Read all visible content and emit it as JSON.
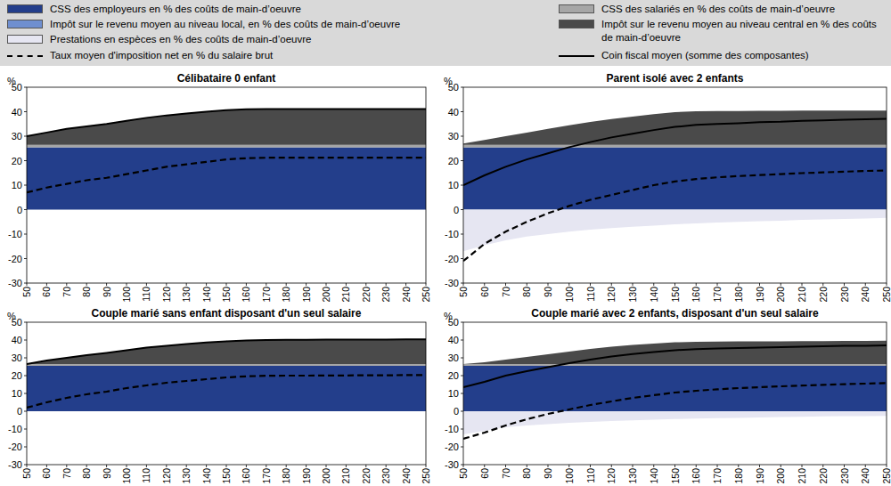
{
  "chart_data": [
    {
      "type": "area",
      "title": "Célibataire 0 enfant",
      "y_label": "%",
      "stacked": true,
      "x": [
        50,
        60,
        70,
        80,
        90,
        100,
        110,
        120,
        130,
        140,
        150,
        160,
        170,
        180,
        190,
        200,
        210,
        220,
        230,
        240,
        250
      ],
      "xlim": [
        50,
        250
      ],
      "xticks": [
        50,
        60,
        70,
        80,
        90,
        100,
        110,
        120,
        130,
        140,
        150,
        160,
        170,
        180,
        190,
        200,
        210,
        220,
        230,
        240,
        250
      ],
      "ylim": [
        -30,
        50
      ],
      "yticks": [
        -30,
        -20,
        -10,
        0,
        10,
        20,
        30,
        40,
        50
      ],
      "series": [
        {
          "name": "CSS des employeurs en % des coûts de main-d’oeuvre",
          "type": "area",
          "color": "#233e8b",
          "values": [
            25.5,
            25.5,
            25.5,
            25.5,
            25.5,
            25.5,
            25.5,
            25.5,
            25.5,
            25.5,
            25.5,
            25.5,
            25.5,
            25.5,
            25.5,
            25.5,
            25.5,
            25.5,
            25.5,
            25.5,
            25.5
          ]
        },
        {
          "name": "CSS des salariés en % des coûts de main-d’oeuvre",
          "type": "area",
          "color": "#a6a6a6",
          "values": [
            1,
            1,
            1,
            1,
            1,
            1,
            1,
            1,
            1,
            1,
            1,
            1,
            1,
            1,
            1,
            1,
            1,
            1,
            1,
            1,
            1
          ]
        },
        {
          "name": "Impôt sur le revenu moyen au niveau local, en % des coûts de main-d’oeuvre",
          "type": "area",
          "color": "#6f8fd0",
          "values": [
            0,
            0,
            0,
            0,
            0,
            0,
            0,
            0,
            0,
            0,
            0,
            0,
            0,
            0,
            0,
            0,
            0,
            0,
            0,
            0,
            0
          ]
        },
        {
          "name": "Impôt sur le revenu moyen au niveau central en % des coûts de main-d’oeuvre",
          "type": "area",
          "color": "#4a4a4a",
          "values": [
            3.5,
            5,
            6.5,
            7.5,
            8.5,
            9.8,
            11,
            12,
            12.8,
            13.5,
            14.1,
            14.5,
            14.6,
            14.6,
            14.6,
            14.6,
            14.6,
            14.6,
            14.6,
            14.6,
            14.6
          ]
        },
        {
          "name": "Prestations en espèces en % des coûts de main-d’oeuvre",
          "type": "area",
          "color": "#e6e6f2",
          "values": [
            0,
            0,
            0,
            0,
            0,
            0,
            0,
            0,
            0,
            0,
            0,
            0,
            0,
            0,
            0,
            0,
            0,
            0,
            0,
            0,
            0
          ]
        },
        {
          "name": "Taux moyen d'imposition net en % du salaire brut",
          "type": "line",
          "line_style": "dashed",
          "color": "#000000",
          "values": [
            7,
            9,
            10.5,
            12,
            13,
            14.5,
            16,
            17.5,
            18.5,
            19.5,
            20.5,
            21,
            21.2,
            21.2,
            21.2,
            21.2,
            21.2,
            21.2,
            21.2,
            21.2,
            21.2
          ]
        },
        {
          "name": "Coin fiscal moyen (somme des composantes)",
          "type": "line",
          "line_style": "solid",
          "color": "#000000",
          "values": [
            30,
            31.5,
            33,
            34,
            35,
            36.3,
            37.5,
            38.5,
            39.3,
            40,
            40.6,
            41,
            41.1,
            41.1,
            41.1,
            41.1,
            41.1,
            41.1,
            41.1,
            41.1,
            41.1
          ]
        }
      ]
    },
    {
      "type": "area",
      "title": "Parent isolé avec 2 enfants",
      "y_label": "%",
      "stacked": true,
      "x": [
        50,
        60,
        70,
        80,
        90,
        100,
        110,
        120,
        130,
        140,
        150,
        160,
        170,
        180,
        190,
        200,
        210,
        220,
        230,
        240,
        250
      ],
      "xlim": [
        50,
        250
      ],
      "xticks": [
        50,
        60,
        70,
        80,
        90,
        100,
        110,
        120,
        130,
        140,
        150,
        160,
        170,
        180,
        190,
        200,
        210,
        220,
        230,
        240,
        250
      ],
      "ylim": [
        -30,
        50
      ],
      "yticks": [
        -30,
        -20,
        -10,
        0,
        10,
        20,
        30,
        40,
        50
      ],
      "series": [
        {
          "name": "CSS des employeurs en % des coûts de main-d’oeuvre",
          "type": "area",
          "color": "#233e8b",
          "values": [
            25.5,
            25.5,
            25.5,
            25.5,
            25.5,
            25.5,
            25.5,
            25.5,
            25.5,
            25.5,
            25.5,
            25.5,
            25.5,
            25.5,
            25.5,
            25.5,
            25.5,
            25.5,
            25.5,
            25.5,
            25.5
          ]
        },
        {
          "name": "CSS des salariés en % des coûts de main-d’oeuvre",
          "type": "area",
          "color": "#a6a6a6",
          "values": [
            1,
            1,
            1,
            1,
            1,
            1,
            1,
            1,
            1,
            1,
            1,
            1,
            1,
            1,
            1,
            1,
            1,
            1,
            1,
            1,
            1
          ]
        },
        {
          "name": "Impôt sur le revenu moyen au niveau local, en % des coûts de main-d’oeuvre",
          "type": "area",
          "color": "#6f8fd0",
          "values": [
            0,
            0,
            0,
            0,
            0,
            0,
            0,
            0,
            0,
            0,
            0,
            0,
            0,
            0,
            0,
            0,
            0,
            0,
            0,
            0,
            0
          ]
        },
        {
          "name": "Impôt sur le revenu moyen au niveau central en % des coûts de main-d’oeuvre",
          "type": "area",
          "color": "#4a4a4a",
          "values": [
            0.5,
            2,
            3.5,
            5,
            6.5,
            8,
            9.3,
            10.5,
            11.5,
            12.5,
            13.3,
            13.7,
            13.8,
            13.8,
            13.9,
            13.9,
            14,
            14,
            14,
            14,
            14
          ]
        },
        {
          "name": "Prestations en espèces en % des coûts de main-d’oeuvre",
          "type": "area",
          "color": "#e6e6f2",
          "values": [
            -17,
            -14.5,
            -12.5,
            -11,
            -10,
            -9,
            -8.2,
            -7.5,
            -7,
            -6.5,
            -6,
            -5.6,
            -5.3,
            -5,
            -4.7,
            -4.5,
            -4.2,
            -4,
            -3.8,
            -3.6,
            -3.4
          ]
        },
        {
          "name": "Taux moyen d'imposition net en % du salaire brut",
          "type": "line",
          "line_style": "dashed",
          "color": "#000000",
          "values": [
            -21,
            -14,
            -9,
            -5,
            -1.5,
            1.5,
            4,
            6,
            8,
            10,
            11.5,
            12.5,
            13.2,
            13.7,
            14.1,
            14.5,
            14.9,
            15.2,
            15.5,
            15.8,
            16
          ]
        },
        {
          "name": "Coin fiscal moyen (somme des composantes)",
          "type": "line",
          "line_style": "solid",
          "color": "#000000",
          "values": [
            10,
            14,
            17.5,
            20.5,
            23,
            25.5,
            27.6,
            29.5,
            31,
            32.5,
            33.8,
            34.6,
            35,
            35.3,
            35.7,
            35.9,
            36.3,
            36.5,
            36.7,
            36.9,
            37.1
          ]
        }
      ]
    },
    {
      "type": "area",
      "title": "Couple marié sans enfant disposant d'un seul salaire",
      "y_label": "%",
      "stacked": true,
      "x": [
        50,
        60,
        70,
        80,
        90,
        100,
        110,
        120,
        130,
        140,
        150,
        160,
        170,
        180,
        190,
        200,
        210,
        220,
        230,
        240,
        250
      ],
      "xlim": [
        50,
        250
      ],
      "xticks": [
        50,
        60,
        70,
        80,
        90,
        100,
        110,
        120,
        130,
        140,
        150,
        160,
        170,
        180,
        190,
        200,
        210,
        220,
        230,
        240,
        250
      ],
      "ylim": [
        -30,
        50
      ],
      "yticks": [
        -30,
        -20,
        -10,
        0,
        10,
        20,
        30,
        40,
        50
      ],
      "series": [
        {
          "name": "CSS des employeurs en % des coûts de main-d’oeuvre",
          "type": "area",
          "color": "#233e8b",
          "values": [
            25.5,
            25.5,
            25.5,
            25.5,
            25.5,
            25.5,
            25.5,
            25.5,
            25.5,
            25.5,
            25.5,
            25.5,
            25.5,
            25.5,
            25.5,
            25.5,
            25.5,
            25.5,
            25.5,
            25.5,
            25.5
          ]
        },
        {
          "name": "CSS des salariés en % des coûts de main-d’oeuvre",
          "type": "area",
          "color": "#a6a6a6",
          "values": [
            1,
            1,
            1,
            1,
            1,
            1,
            1,
            1,
            1,
            1,
            1,
            1,
            1,
            1,
            1,
            1,
            1,
            1,
            1,
            1,
            1
          ]
        },
        {
          "name": "Impôt sur le revenu moyen au niveau local, en % des coûts de main-d’oeuvre",
          "type": "area",
          "color": "#6f8fd0",
          "values": [
            0,
            0,
            0,
            0,
            0,
            0,
            0,
            0,
            0,
            0,
            0,
            0,
            0,
            0,
            0,
            0,
            0,
            0,
            0,
            0,
            0
          ]
        },
        {
          "name": "Impôt sur le revenu moyen au niveau central en % des coûts de main-d’oeuvre",
          "type": "area",
          "color": "#4a4a4a",
          "values": [
            0,
            2,
            3.5,
            5,
            6.3,
            7.8,
            9.2,
            10.3,
            11.3,
            12.1,
            12.8,
            13.3,
            13.5,
            13.6,
            13.6,
            13.7,
            13.7,
            13.8,
            13.8,
            13.9,
            13.9
          ]
        },
        {
          "name": "Prestations en espèces en % des coûts de main-d’oeuvre",
          "type": "area",
          "color": "#e6e6f2",
          "values": [
            0,
            0,
            0,
            0,
            0,
            0,
            0,
            0,
            0,
            0,
            0,
            0,
            0,
            0,
            0,
            0,
            0,
            0,
            0,
            0,
            0
          ]
        },
        {
          "name": "Taux moyen d'imposition net en % du salaire brut",
          "type": "line",
          "line_style": "dashed",
          "color": "#000000",
          "values": [
            2,
            5,
            7.5,
            9.5,
            11,
            13,
            14.5,
            16,
            17,
            18,
            19,
            19.6,
            19.9,
            20,
            20,
            20.1,
            20.1,
            20.2,
            20.2,
            20.3,
            20.3
          ]
        },
        {
          "name": "Coin fiscal moyen (somme des composantes)",
          "type": "line",
          "line_style": "solid",
          "color": "#000000",
          "values": [
            26.5,
            28.5,
            30,
            31.5,
            32.8,
            34.3,
            35.7,
            36.8,
            37.8,
            38.6,
            39.3,
            39.8,
            40,
            40.1,
            40.1,
            40.2,
            40.2,
            40.3,
            40.3,
            40.4,
            40.4
          ]
        }
      ]
    },
    {
      "type": "area",
      "title": "Couple marié avec 2 enfants, disposant d'un seul salaire",
      "y_label": "%",
      "stacked": true,
      "x": [
        50,
        60,
        70,
        80,
        90,
        100,
        110,
        120,
        130,
        140,
        150,
        160,
        170,
        180,
        190,
        200,
        210,
        220,
        230,
        240,
        250
      ],
      "xlim": [
        50,
        250
      ],
      "xticks": [
        50,
        60,
        70,
        80,
        90,
        100,
        110,
        120,
        130,
        140,
        150,
        160,
        170,
        180,
        190,
        200,
        210,
        220,
        230,
        240,
        250
      ],
      "ylim": [
        -30,
        50
      ],
      "yticks": [
        -30,
        -20,
        -10,
        0,
        10,
        20,
        30,
        40,
        50
      ],
      "series": [
        {
          "name": "CSS des employeurs en % des coûts de main-d’oeuvre",
          "type": "area",
          "color": "#233e8b",
          "values": [
            25.5,
            25.5,
            25.5,
            25.5,
            25.5,
            25.5,
            25.5,
            25.5,
            25.5,
            25.5,
            25.5,
            25.5,
            25.5,
            25.5,
            25.5,
            25.5,
            25.5,
            25.5,
            25.5,
            25.5,
            25.5
          ]
        },
        {
          "name": "CSS des salariés en % des coûts de main-d’oeuvre",
          "type": "area",
          "color": "#a6a6a6",
          "values": [
            1,
            1,
            1,
            1,
            1,
            1,
            1,
            1,
            1,
            1,
            1,
            1,
            1,
            1,
            1,
            1,
            1,
            1,
            1,
            1,
            1
          ]
        },
        {
          "name": "Impôt sur le revenu moyen au niveau local, en % des coûts de main-d’oeuvre",
          "type": "area",
          "color": "#6f8fd0",
          "values": [
            0,
            0,
            0,
            0,
            0,
            0,
            0,
            0,
            0,
            0,
            0,
            0,
            0,
            0,
            0,
            0,
            0,
            0,
            0,
            0,
            0
          ]
        },
        {
          "name": "Impôt sur le revenu moyen au niveau central en % des coûts de main-d’oeuvre",
          "type": "area",
          "color": "#4a4a4a",
          "values": [
            0,
            1,
            2.5,
            4,
            5.5,
            7,
            8.5,
            9.7,
            10.7,
            11.5,
            12.2,
            12.5,
            12.6,
            12.7,
            12.8,
            12.8,
            12.9,
            12.9,
            13,
            13,
            13.1
          ]
        },
        {
          "name": "Prestations en espèces en % des coûts de main-d’oeuvre",
          "type": "area",
          "color": "#e6e6f2",
          "values": [
            -13,
            -11,
            -9,
            -8,
            -7.2,
            -6.5,
            -6,
            -5.5,
            -5.1,
            -4.7,
            -4.4,
            -4.1,
            -3.9,
            -3.7,
            -3.5,
            -3.3,
            -3.1,
            -2.9,
            -2.8,
            -2.7,
            -2.6
          ]
        },
        {
          "name": "Taux moyen d'imposition net en % du salaire brut",
          "type": "line",
          "line_style": "dashed",
          "color": "#000000",
          "values": [
            -15.5,
            -12,
            -8,
            -4.5,
            -1.5,
            1,
            3.5,
            5.5,
            7.5,
            9,
            10.5,
            11.5,
            12.3,
            13,
            13.5,
            14,
            14.4,
            14.8,
            15.2,
            15.5,
            15.8
          ]
        },
        {
          "name": "Coin fiscal moyen (somme des composantes)",
          "type": "line",
          "line_style": "solid",
          "color": "#000000",
          "values": [
            13.5,
            16.5,
            20,
            22.5,
            24.8,
            27,
            29,
            30.7,
            32.1,
            33.3,
            34.3,
            34.9,
            35.2,
            35.5,
            35.8,
            36,
            36.3,
            36.5,
            36.7,
            36.8,
            37
          ]
        }
      ]
    }
  ]
}
